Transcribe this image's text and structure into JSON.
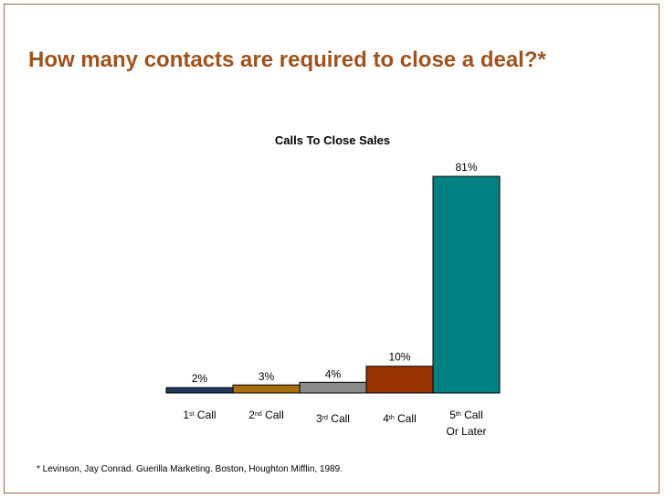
{
  "slide": {
    "title": "How many contacts are required to close a deal?*",
    "footnote": "* Levinson, Jay Conrad.  Guerilla Marketing.  Boston, Houghton Mifflin, 1989.",
    "frame_color": "#9a6a3a",
    "title_color": "#a0521d"
  },
  "chart_data": {
    "type": "bar",
    "title": "Calls To Close Sales",
    "categories": [
      {
        "base": "1",
        "sup": "st",
        "rest": " Call",
        "line2": ""
      },
      {
        "base": "2",
        "sup": "nd",
        "rest": " Call",
        "line2": ""
      },
      {
        "base": "3",
        "sup": "rd",
        "rest": " Call",
        "line2": ""
      },
      {
        "base": "4",
        "sup": "th",
        "rest": " Call",
        "line2": ""
      },
      {
        "base": "5",
        "sup": "th",
        "rest": " Call",
        "line2": "Or Later"
      }
    ],
    "values": [
      2,
      3,
      4,
      10,
      81
    ],
    "labels": [
      "2%",
      "3%",
      "4%",
      "10%",
      "81%"
    ],
    "colors": [
      "#1f3a5f",
      "#a66f10",
      "#8a8a8a",
      "#993300",
      "#008080"
    ],
    "ylim": [
      0,
      81
    ],
    "grid": false,
    "legend": "none"
  }
}
